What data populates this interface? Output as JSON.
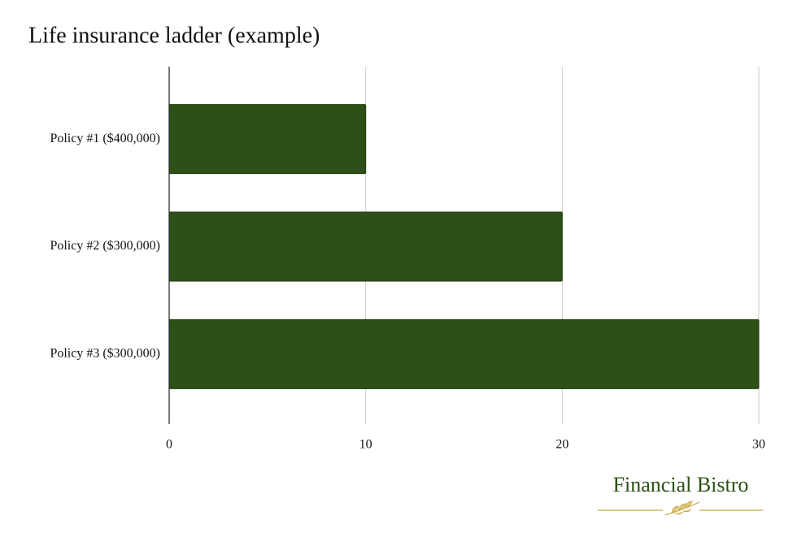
{
  "chart_data": {
    "type": "hbar",
    "title": "Life insurance ladder (example)",
    "categories": [
      "Policy #1 ($400,000)",
      "Policy #2 ($300,000)",
      "Policy #3 ($300,000)"
    ],
    "values": [
      10,
      20,
      30
    ],
    "color": "#2c5016",
    "xlim": [
      0,
      30
    ],
    "xticks": [
      0,
      10,
      20,
      30
    ],
    "grid": true
  },
  "logo": {
    "text": "Financial Bistro"
  }
}
